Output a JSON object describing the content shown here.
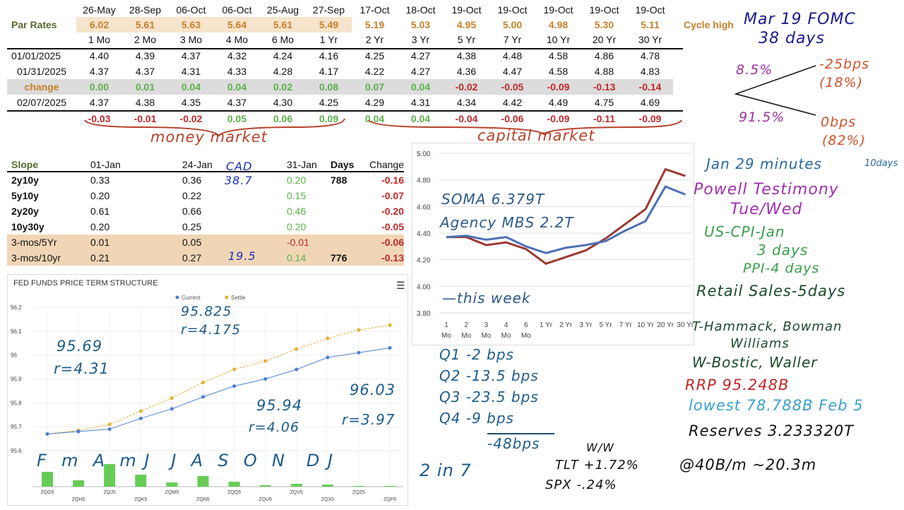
{
  "top_table": {
    "cycle_dates": [
      "26-May",
      "28-Sep",
      "06-Oct",
      "06-Oct",
      "25-Aug",
      "27-Sep",
      "17-Oct",
      "18-Oct",
      "19-Oct",
      "19-Oct",
      "19-Oct",
      "19-Oct",
      "19-Oct"
    ],
    "par_label": "Par Rates",
    "par_rates": [
      "6.02",
      "5.61",
      "5.63",
      "5.64",
      "5.61",
      "5.49",
      "5.19",
      "5.03",
      "4.95",
      "5.00",
      "4.98",
      "5.30",
      "5.11"
    ],
    "cycle_high_label": "Cycle high",
    "tenors": [
      "1 Mo",
      "2 Mo",
      "3 Mo",
      "4 Mo",
      "6 Mo",
      "1 Yr",
      "2 Yr",
      "3 Yr",
      "5 Yr",
      "7 Yr",
      "10 Yr",
      "20 Yr",
      "30 Yr"
    ],
    "rows": [
      {
        "label": "01/01/2025",
        "values": [
          "4.40",
          "4.39",
          "4.37",
          "4.32",
          "4.24",
          "4.16",
          "4.25",
          "4.27",
          "4.38",
          "4.48",
          "4.58",
          "4.86",
          "4.78"
        ]
      },
      {
        "label": "01/31/2025",
        "values": [
          "4.37",
          "4.37",
          "4.31",
          "4.33",
          "4.28",
          "4.17",
          "4.22",
          "4.27",
          "4.36",
          "4.47",
          "4.58",
          "4.88",
          "4.83"
        ]
      },
      {
        "label": "change",
        "values": [
          "0.00",
          "0.01",
          "0.04",
          "0.04",
          "0.02",
          "0.08",
          "0.07",
          "0.04",
          "-0.02",
          "-0.05",
          "-0.09",
          "-0.13",
          "-0.14"
        ]
      },
      {
        "label": "02/07/2025",
        "values": [
          "4.37",
          "4.38",
          "4.35",
          "4.37",
          "4.30",
          "4.25",
          "4.29",
          "4.31",
          "4.34",
          "4.42",
          "4.49",
          "4.75",
          "4.69"
        ]
      }
    ],
    "weekly_change": [
      "-0.03",
      "-0.01",
      "-0.02",
      "0.05",
      "0.06",
      "0.09",
      "0.04",
      "0.04",
      "-0.04",
      "-0.06",
      "-0.09",
      "-0.11",
      "-0.09"
    ]
  },
  "slope_table": {
    "headers": [
      "Slope",
      "01-Jan",
      "24-Jan",
      "31-Jan",
      "Days",
      "Change"
    ],
    "rows": [
      {
        "label": "2y10y",
        "jan01": "0.33",
        "jan24": "0.36",
        "jan31": "0.20",
        "days": "788",
        "change": "-0.16"
      },
      {
        "label": "5y10y",
        "jan01": "0.20",
        "jan24": "0.22",
        "jan31": "0.15",
        "days": "",
        "change": "-0.07"
      },
      {
        "label": "2y20y",
        "jan01": "0.61",
        "jan24": "0.66",
        "jan31": "0.46",
        "days": "",
        "change": "-0.20"
      },
      {
        "label": "10y30y",
        "jan01": "0.20",
        "jan24": "0.25",
        "jan31": "0.20",
        "days": "",
        "change": "-0.05"
      },
      {
        "label": "3-mos/5Yr",
        "jan01": "0.01",
        "jan24": "0.05",
        "jan31": "-0.01",
        "days": "",
        "change": "-0.06"
      },
      {
        "label": "3-mos/10yr",
        "jan01": "0.21",
        "jan24": "0.27",
        "jan31": "0.14",
        "days": "776",
        "change": "-0.13"
      }
    ]
  },
  "annotations": {
    "money_market": "money market",
    "capital_market": "capital market",
    "cad": "CAD",
    "cad_value": "38.7",
    "slope_note": "19.5",
    "fomc": "Mar 19 FOMC",
    "fomc_days": "38 days",
    "prob_cut": "8.5%",
    "prob_hold": "91.5%",
    "cut": "-25bps",
    "cut_prob": "(18%)",
    "hold": "0bps",
    "hold_prob": "(82%)",
    "minutes": "Jan 29 minutes",
    "minutes_days": "10days",
    "powell": "Powell Testimony",
    "powell_days": "Tue/Wed",
    "cpi": "US-CPI-Jan",
    "cpi_days": "3 days",
    "ppi": "PPI-4 days",
    "retail": "Retail Sales-5days",
    "speakers_t": "T-Hammack, Bowman",
    "speakers_t2": "Williams",
    "speakers_w": "W-Bostic, Waller",
    "rrp": "RRP  95.248B",
    "rrp_low": "lowest 78.788B  Feb 5",
    "reserves": "Reserves 3.233320T",
    "pace": "@40B/m  ~20.3m",
    "soma": "SOMA  6.379T",
    "mbs": "Agency MBS 2.2T",
    "this_week": "—this week",
    "q1": "Q1    -2 bps",
    "q2": "Q2    -13.5 bps",
    "q3": "Q3    -23.5 bps",
    "q4": "Q4    -9 bps",
    "q_total": "-48bps",
    "two_in_seven": "2 in 7",
    "ww": "W/W",
    "tlt": "TLT  +1.72%",
    "spx": "SPX  -.24%",
    "ff1": "95.69",
    "ff1r": "r=4.31",
    "ff2": "95.825",
    "ff2r": "r=4.175",
    "ff3": "95.94",
    "ff3r": "r=4.06",
    "ff4": "96.03",
    "ff4r": "r=3.97",
    "months": "F  m  A  m J   J  A  S  O  N   D J"
  },
  "yield_chart": {
    "type": "line",
    "categories": [
      "1 Mo",
      "2 Mo",
      "3 Mo",
      "4 Mo",
      "6 Mo",
      "1 Yr",
      "2 Yr",
      "3 Yr",
      "5 Yr",
      "7 Yr",
      "10 Yr",
      "20 Yr",
      "30 Yr"
    ],
    "cat_line1": [
      "1",
      "2",
      "3",
      "4",
      "6",
      "1 Yr",
      "2 Yr",
      "3 Yr",
      "5 Yr",
      "7 Yr",
      "10 Yr",
      "20 Yr",
      "30 Yr"
    ],
    "cat_line2": [
      "Mo",
      "Mo",
      "Mo",
      "Mo",
      "Mo",
      "",
      "",
      "",
      "",
      "",
      "",
      "",
      ""
    ],
    "yticks": [
      "5.00",
      "4.80",
      "4.60",
      "4.40",
      "4.20",
      "4.00",
      "3.80"
    ],
    "ylim": [
      3.8,
      5.0
    ],
    "series": [
      {
        "name": "02/07/2025",
        "color": "#4a6fb5",
        "values": [
          4.37,
          4.38,
          4.35,
          4.37,
          4.3,
          4.25,
          4.29,
          4.31,
          4.34,
          4.42,
          4.49,
          4.75,
          4.69
        ]
      },
      {
        "name": "01/31/2025",
        "color": "#9b3a32",
        "values": [
          4.37,
          4.37,
          4.31,
          4.33,
          4.28,
          4.17,
          4.22,
          4.27,
          4.36,
          4.47,
          4.58,
          4.88,
          4.83
        ]
      }
    ]
  },
  "chart_data": {
    "type": "line",
    "title": "FED FUNDS PRICE TERM STRUCTURE",
    "categories": [
      "ZQG5",
      "ZQH5",
      "ZQJ5",
      "ZQK5",
      "ZQM5",
      "ZQN5",
      "ZQQ5",
      "ZQU5",
      "ZQV5",
      "ZQX5",
      "ZQZ5",
      "ZQF6"
    ],
    "yticks": [
      "96.2",
      "96.1",
      "96",
      "95.9",
      "95.8",
      "95.7",
      "95.6"
    ],
    "ylim": [
      95.6,
      96.2
    ],
    "legend": "top-center",
    "series": [
      {
        "name": "Current",
        "color": "#4a7fd6",
        "values": [
          95.67,
          95.68,
          95.69,
          95.735,
          95.775,
          95.825,
          95.87,
          95.9,
          95.94,
          95.99,
          96.01,
          96.03
        ]
      },
      {
        "name": "Settle",
        "color": "#e0b030",
        "values": [
          95.67,
          95.685,
          95.71,
          95.765,
          95.82,
          95.885,
          95.94,
          95.975,
          96.025,
          96.07,
          96.105,
          96.125
        ]
      }
    ],
    "volume": [
      21,
      9,
      32,
      17,
      6,
      15,
      7,
      2,
      4,
      3,
      1,
      1
    ]
  }
}
